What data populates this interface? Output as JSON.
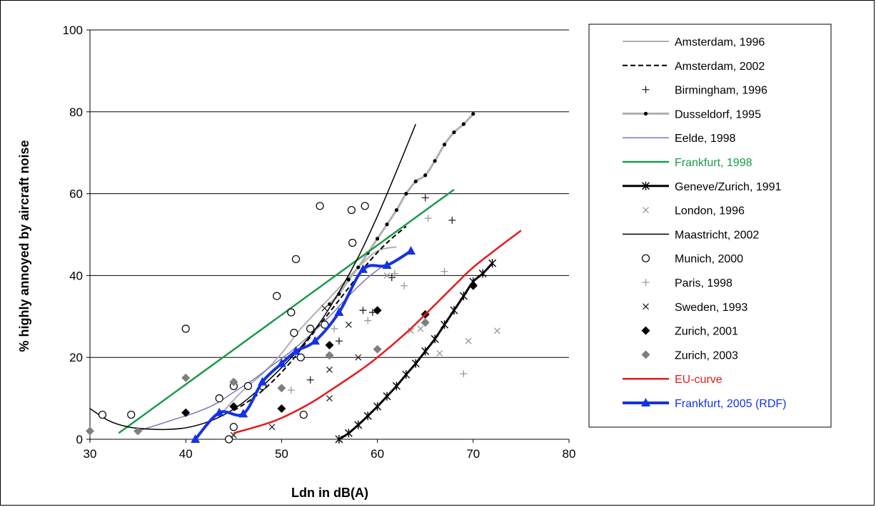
{
  "chart_data": {
    "type": "line",
    "xlabel": "Ldn in dB(A)",
    "ylabel": "% highly annoyed by aircraft noise",
    "xlim": [
      30,
      80
    ],
    "ylim": [
      0,
      100
    ],
    "xticks": [
      "30",
      "40",
      "50",
      "60",
      "70",
      "80"
    ],
    "yticks": [
      "0",
      "20",
      "40",
      "60",
      "80",
      "100"
    ],
    "grid": "horizontal",
    "legend_position": "right",
    "series": [
      {
        "name": "Amsterdam, 1996",
        "color": "#b0b0b0",
        "style": "line",
        "width": 2,
        "points": [
          [
            44,
            7
          ],
          [
            46,
            12
          ],
          [
            48,
            16
          ],
          [
            50,
            21
          ],
          [
            52,
            27
          ],
          [
            54,
            32
          ],
          [
            56,
            37
          ],
          [
            58,
            42
          ],
          [
            60,
            46
          ],
          [
            62,
            47
          ]
        ]
      },
      {
        "name": "Amsterdam, 2002",
        "color": "#000000",
        "style": "dash",
        "width": 2,
        "points": [
          [
            45,
            7
          ],
          [
            47,
            10
          ],
          [
            49,
            14
          ],
          [
            51,
            19
          ],
          [
            53,
            25
          ],
          [
            55,
            31
          ],
          [
            57,
            37
          ],
          [
            59,
            43
          ],
          [
            61,
            48
          ],
          [
            63,
            52
          ]
        ]
      },
      {
        "name": "Birmingham, 1996",
        "color": "#222222",
        "style": "marker",
        "marker": "plus",
        "points": [
          [
            53,
            14.5
          ],
          [
            56,
            24
          ],
          [
            58.5,
            31.5
          ],
          [
            59.5,
            31
          ],
          [
            61.5,
            39.5
          ],
          [
            65,
            59
          ],
          [
            67.8,
            53.5
          ]
        ]
      },
      {
        "name": "Dusseldorf, 1995",
        "color": "#b0b0b0",
        "style": "line-dot",
        "width": 3,
        "marker": "dot",
        "markerColor": "#000000",
        "points": [
          [
            55,
            33
          ],
          [
            56,
            35.5
          ],
          [
            57,
            39
          ],
          [
            58,
            42
          ],
          [
            59,
            45.5
          ],
          [
            60,
            49
          ],
          [
            61,
            52.5
          ],
          [
            62,
            56
          ],
          [
            63,
            60
          ],
          [
            64,
            63
          ],
          [
            65,
            64.5
          ],
          [
            66,
            68
          ],
          [
            67,
            72
          ],
          [
            68,
            75
          ],
          [
            69,
            77
          ],
          [
            70,
            79.5
          ]
        ]
      },
      {
        "name": "Eelde, 1998",
        "color": "#7a7ab8",
        "style": "line",
        "width": 1.5,
        "points": [
          [
            35,
            2
          ],
          [
            37,
            3.5
          ],
          [
            39,
            5
          ],
          [
            41,
            6.5
          ],
          [
            43,
            8.5
          ],
          [
            45,
            11.5
          ],
          [
            47,
            14.5
          ],
          [
            49,
            18
          ],
          [
            51,
            21.5
          ],
          [
            53,
            25.5
          ],
          [
            55,
            30
          ],
          [
            57,
            35
          ],
          [
            59,
            39.5
          ],
          [
            61,
            43
          ]
        ]
      },
      {
        "name": "Frankfurt, 1998",
        "color": "#1a9a4a",
        "style": "line",
        "width": 2.5,
        "labelColor": "#1a9a4a",
        "points": [
          [
            33,
            1.5
          ],
          [
            68,
            61
          ]
        ]
      },
      {
        "name": "Geneve/Zurich, 1991",
        "color": "#000000",
        "style": "line-star",
        "width": 3,
        "marker": "star",
        "points": [
          [
            56,
            0
          ],
          [
            57,
            1.5
          ],
          [
            58,
            3.5
          ],
          [
            59,
            5.7
          ],
          [
            60,
            8
          ],
          [
            61,
            10.5
          ],
          [
            62,
            13
          ],
          [
            63,
            15.8
          ],
          [
            64,
            18.5
          ],
          [
            65,
            21.5
          ],
          [
            66,
            24.5
          ],
          [
            67,
            28
          ],
          [
            68,
            31.5
          ],
          [
            69,
            35
          ],
          [
            70,
            38.5
          ],
          [
            71,
            40.5
          ],
          [
            72,
            43
          ]
        ]
      },
      {
        "name": "London, 1996",
        "color": "#999999",
        "style": "marker",
        "marker": "x",
        "points": [
          [
            63.5,
            26.5
          ],
          [
            64.5,
            27
          ],
          [
            66.5,
            21
          ],
          [
            69.5,
            24
          ],
          [
            72.5,
            26.5
          ],
          [
            61,
            40
          ]
        ]
      },
      {
        "name": "Maastricht, 2002",
        "color": "#000000",
        "style": "line",
        "width": 1.5,
        "points": [
          [
            30,
            7.5
          ],
          [
            32,
            4.5
          ],
          [
            34,
            3
          ],
          [
            36,
            2.5
          ],
          [
            38,
            2.4
          ],
          [
            40,
            2.8
          ],
          [
            42,
            4
          ],
          [
            44,
            6
          ],
          [
            46,
            9
          ],
          [
            48,
            13
          ],
          [
            50,
            17.5
          ],
          [
            52,
            22.5
          ],
          [
            54,
            28.5
          ],
          [
            56,
            36
          ],
          [
            58,
            44.5
          ],
          [
            60,
            54.5
          ],
          [
            62,
            65.5
          ],
          [
            64,
            77
          ]
        ]
      },
      {
        "name": "Munich, 2000",
        "color": "#000000",
        "style": "marker",
        "marker": "circle",
        "points": [
          [
            31.3,
            6
          ],
          [
            34.3,
            6
          ],
          [
            40,
            27
          ],
          [
            43.5,
            10
          ],
          [
            44.5,
            0
          ],
          [
            45,
            3
          ],
          [
            45,
            13
          ],
          [
            46.5,
            13
          ],
          [
            48,
            13
          ],
          [
            49.5,
            35
          ],
          [
            51,
            31
          ],
          [
            51.3,
            26
          ],
          [
            51.5,
            44
          ],
          [
            52,
            20
          ],
          [
            52.3,
            6
          ],
          [
            53,
            27
          ],
          [
            54,
            57
          ],
          [
            54.5,
            28
          ],
          [
            57.3,
            56
          ],
          [
            57.4,
            48
          ],
          [
            58.7,
            57
          ]
        ]
      },
      {
        "name": "Paris, 1998",
        "color": "#999999",
        "style": "marker",
        "marker": "plus",
        "points": [
          [
            51,
            12
          ],
          [
            55.5,
            27
          ],
          [
            59,
            29
          ],
          [
            61.8,
            40.5
          ],
          [
            62.8,
            37.5
          ],
          [
            65.3,
            54
          ],
          [
            67,
            41
          ],
          [
            69,
            16
          ]
        ]
      },
      {
        "name": "Sweden, 1993",
        "color": "#222222",
        "style": "marker",
        "marker": "x",
        "points": [
          [
            45,
            1
          ],
          [
            49,
            3
          ],
          [
            55,
            10
          ],
          [
            55,
            17
          ],
          [
            57,
            28
          ],
          [
            58,
            20
          ],
          [
            54.5,
            32
          ]
        ]
      },
      {
        "name": "Zurich, 2001",
        "color": "#000000",
        "style": "marker",
        "marker": "diamond",
        "points": [
          [
            40,
            6.5
          ],
          [
            45,
            8
          ],
          [
            50,
            7.5
          ],
          [
            55,
            23
          ],
          [
            60,
            31.5
          ],
          [
            65,
            30.5
          ],
          [
            70,
            37.5
          ]
        ]
      },
      {
        "name": "Zurich, 2003",
        "color": "#7f7f7f",
        "style": "marker",
        "marker": "diamond",
        "points": [
          [
            30,
            2
          ],
          [
            35,
            2
          ],
          [
            40,
            15
          ],
          [
            45,
            14
          ],
          [
            50,
            12.5
          ],
          [
            55,
            20.5
          ],
          [
            60,
            22
          ],
          [
            65,
            28.5
          ]
        ]
      },
      {
        "name": "EU-curve",
        "color": "#e8191c",
        "style": "line",
        "width": 2.5,
        "labelColor": "#e8191c",
        "points": [
          [
            45,
            1.5
          ],
          [
            48,
            3.5
          ],
          [
            50,
            5.2
          ],
          [
            53,
            8.8
          ],
          [
            55,
            11.8
          ],
          [
            58,
            16.5
          ],
          [
            60,
            20
          ],
          [
            63,
            26
          ],
          [
            65,
            30.5
          ],
          [
            68,
            37.5
          ],
          [
            70,
            42
          ],
          [
            73,
            47.5
          ],
          [
            75,
            51
          ]
        ]
      },
      {
        "name": "Frankfurt, 2005 (RDF)",
        "color": "#1432e6",
        "style": "line-triangle",
        "width": 4,
        "marker": "triangle",
        "labelColor": "#1432e6",
        "points": [
          [
            41,
            0
          ],
          [
            43.5,
            6.5
          ],
          [
            46,
            6.2
          ],
          [
            48,
            14
          ],
          [
            50,
            18.5
          ],
          [
            51.5,
            21.5
          ],
          [
            53.5,
            24
          ],
          [
            56,
            31
          ],
          [
            58.5,
            41.5
          ],
          [
            61,
            42.5
          ],
          [
            63.5,
            46
          ]
        ]
      }
    ]
  }
}
